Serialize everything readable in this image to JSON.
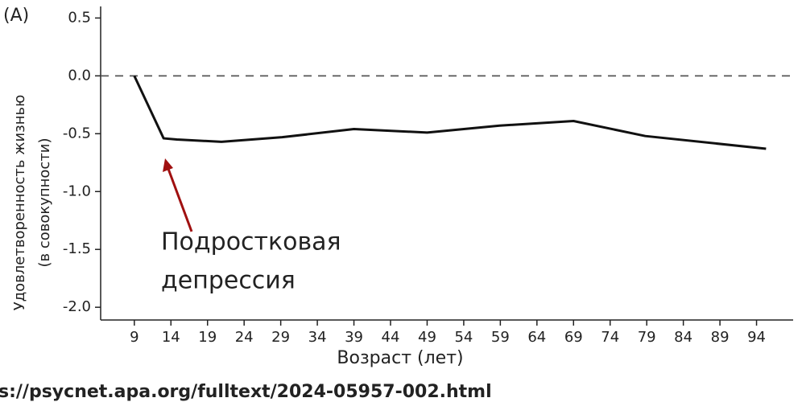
{
  "chart_data": {
    "type": "line",
    "panel_label": "(A)",
    "ylabel": [
      "Удовлетворенность жизнью",
      "(в совокупности)"
    ],
    "xlabel": "Возраст (лет)",
    "annotation": [
      "Подростковая",
      "депрессия"
    ],
    "source": "s://psycnet.apa.org/fulltext/2024-05957-002.html",
    "xlim": [
      4.4,
      99
    ],
    "ylim": [
      -2.11,
      0.6
    ],
    "xticks": [
      9,
      14,
      19,
      24,
      29,
      34,
      39,
      44,
      49,
      54,
      59,
      64,
      69,
      74,
      79,
      84,
      89,
      94
    ],
    "yticks": [
      0.5,
      {
        "value": 0,
        "label": "0.0"
      },
      -0.5,
      {
        "value": -1,
        "label": "-1.0"
      },
      -1.5,
      {
        "value": -2,
        "label": "-2.0"
      }
    ],
    "reference_line": 0,
    "series": [
      {
        "color": "#111111",
        "x": [
          9,
          13,
          14.8,
          20.9,
          29.2,
          39,
          49,
          58.9,
          69,
          78.8,
          95.3
        ],
        "values": [
          0,
          -0.54,
          -0.55,
          -0.57,
          -0.53,
          -0.46,
          -0.49,
          -0.43,
          -0.39,
          -0.52,
          -0.63
        ]
      }
    ]
  }
}
